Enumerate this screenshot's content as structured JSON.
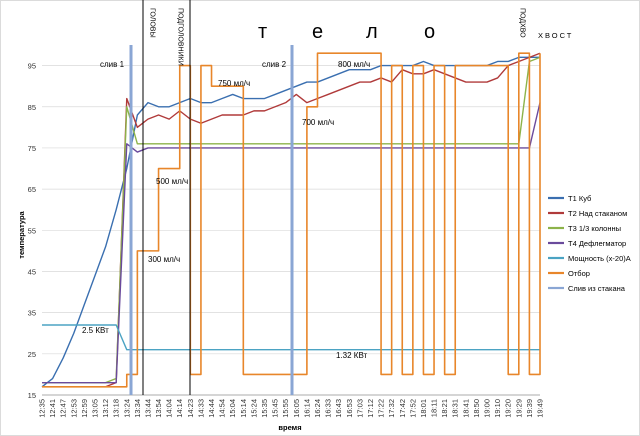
{
  "chart_data": {
    "type": "line",
    "xlabel": "время",
    "ylabel": "температура",
    "ylim": [
      15,
      100
    ],
    "yticks": [
      15,
      25,
      35,
      45,
      55,
      65,
      75,
      85,
      95
    ],
    "xticks": [
      "12:35",
      "12:41",
      "12:47",
      "12:53",
      "12:59",
      "13:05",
      "13:12",
      "13:18",
      "13:24",
      "13:34",
      "13:44",
      "13:54",
      "14:04",
      "14:14",
      "14:23",
      "14:33",
      "14:44",
      "14:54",
      "15:04",
      "15:14",
      "15:24",
      "15:35",
      "15:45",
      "15:55",
      "16:05",
      "16:14",
      "16:24",
      "16:33",
      "16:43",
      "16:53",
      "17:03",
      "17:12",
      "17:22",
      "17:32",
      "17:42",
      "17:52",
      "18:01",
      "18:11",
      "18:21",
      "18:31",
      "18:41",
      "18:50",
      "19:00",
      "19:10",
      "19:20",
      "19:29",
      "19:39",
      "19:49"
    ],
    "series": [
      {
        "name": "Т1 Куб",
        "color": "#3a6fb0",
        "values": [
          17,
          19,
          24,
          30,
          37,
          44,
          51,
          60,
          70,
          83,
          86,
          85,
          85,
          86,
          87,
          86,
          86,
          87,
          88,
          87,
          87,
          87,
          88,
          89,
          90,
          91,
          91,
          92,
          93,
          94,
          94,
          94,
          95,
          95,
          95,
          95,
          96,
          95,
          95,
          95,
          95,
          95,
          95,
          96,
          96,
          97,
          97,
          97
        ]
      },
      {
        "name": "Т2 Над стаканом",
        "color": "#b03a3a",
        "values": [
          17,
          17,
          17,
          17,
          17,
          17,
          17,
          18,
          87,
          80,
          82,
          83,
          82,
          84,
          82,
          81,
          82,
          83,
          83,
          83,
          84,
          84,
          85,
          86,
          88,
          86,
          87,
          88,
          89,
          90,
          91,
          91,
          92,
          91,
          94,
          93,
          93,
          94,
          93,
          92,
          91,
          91,
          91,
          92,
          95,
          96,
          97,
          98
        ]
      },
      {
        "name": "Т3 1/3 колонны",
        "color": "#8db34a",
        "values": [
          18,
          18,
          18,
          18,
          18,
          18,
          18,
          19,
          85,
          76,
          76,
          76,
          76,
          76,
          76,
          76,
          76,
          76,
          76,
          76,
          76,
          76,
          76,
          76,
          76,
          76,
          76,
          76,
          76,
          76,
          76,
          76,
          76,
          76,
          76,
          76,
          76,
          76,
          76,
          76,
          76,
          76,
          76,
          76,
          76,
          76,
          96,
          97
        ]
      },
      {
        "name": "Т4 Дефлегматор",
        "color": "#6a4a9c",
        "values": [
          18,
          18,
          18,
          18,
          18,
          18,
          18,
          18,
          76,
          74,
          75,
          75,
          75,
          75,
          75,
          75,
          75,
          75,
          75,
          75,
          75,
          75,
          75,
          75,
          75,
          75,
          75,
          75,
          75,
          75,
          75,
          75,
          75,
          75,
          75,
          75,
          75,
          75,
          75,
          75,
          75,
          75,
          75,
          75,
          75,
          75,
          75,
          86
        ]
      },
      {
        "name": "Мощность (х-20)А",
        "color": "#4ba3c3",
        "values": [
          32,
          32,
          32,
          32,
          32,
          32,
          32,
          32,
          26,
          26,
          26,
          26,
          26,
          26,
          26,
          26,
          26,
          26,
          26,
          26,
          26,
          26,
          26,
          26,
          26,
          26,
          26,
          26,
          26,
          26,
          26,
          26,
          26,
          26,
          26,
          26,
          26,
          26,
          26,
          26,
          26,
          26,
          26,
          26,
          26,
          26,
          26,
          26
        ]
      },
      {
        "name": "Отбор",
        "color": "#e8862a",
        "values": [
          17,
          17,
          17,
          17,
          17,
          17,
          17,
          17,
          20,
          50,
          50,
          70,
          70,
          95,
          20,
          95,
          90,
          90,
          90,
          20,
          20,
          20,
          20,
          20,
          20,
          85,
          98,
          98,
          98,
          98,
          98,
          98,
          20,
          95,
          20,
          95,
          20,
          95,
          20,
          95,
          95,
          95,
          95,
          95,
          20,
          98,
          20,
          98
        ]
      },
      {
        "name": "Слив из стакана",
        "color": "#8aa6d4",
        "values": []
      }
    ],
    "annotations": {
      "tело": [
        "т",
        "е",
        "л",
        "о"
      ],
      "golovy": "ГОЛОВЫ",
      "podgolovniki": "ПОДГОЛОВНИКИ",
      "podhvo": "ПОДХВО",
      "hvost": "ХВОСТ",
      "sliv1": "слив 1",
      "sliv2": "слив 2",
      "r750": "750 мл/ч",
      "r800": "800 мл/ч",
      "r700": "700 мл/ч",
      "r500": "500 мл/ч",
      "r300": "300 мл/ч",
      "p25": "2.5 КВт",
      "p132": "1.32 КВт"
    }
  }
}
